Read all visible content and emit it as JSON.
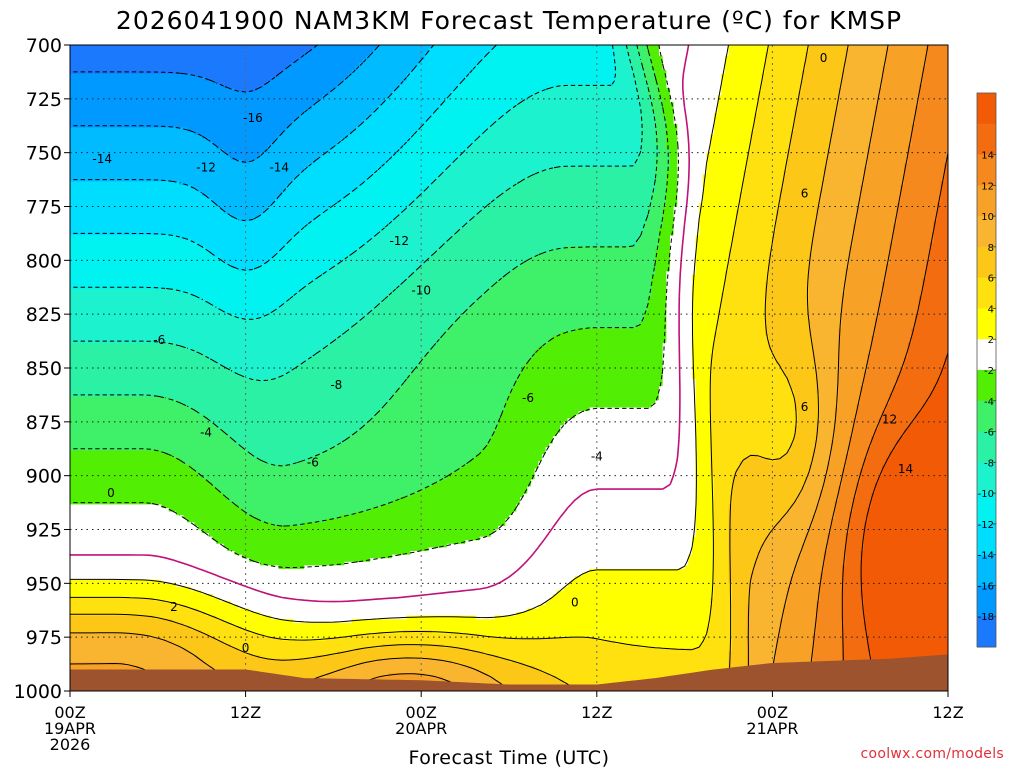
{
  "chart_data": {
    "type": "heatmap",
    "title": "2026041900 NAM3KM Forecast Temperature (ºC) for KMSP",
    "xlabel": "Forecast Time (UTC)",
    "ylabel": "",
    "y_levels": [
      700,
      725,
      750,
      775,
      800,
      825,
      850,
      875,
      900,
      925,
      950,
      975,
      1000
    ],
    "x_hours": [
      0,
      12,
      24,
      36,
      48,
      60
    ],
    "x_ticks": [
      {
        "hour": 0,
        "lines": [
          "00Z",
          "19APR",
          "2026"
        ]
      },
      {
        "hour": 12,
        "lines": [
          "12Z"
        ]
      },
      {
        "hour": 24,
        "lines": [
          "00Z",
          "20APR"
        ]
      },
      {
        "hour": 36,
        "lines": [
          "12Z"
        ]
      },
      {
        "hour": 48,
        "lines": [
          "00Z",
          "21APR"
        ]
      },
      {
        "hour": 60,
        "lines": [
          "12Z"
        ]
      }
    ],
    "xlim": [
      0,
      60
    ],
    "ylim": [
      700,
      1000
    ],
    "grid": true,
    "colorbar": {
      "labels": [
        14,
        12,
        10,
        8,
        6,
        4,
        2,
        -2,
        -4,
        -6,
        -8,
        -10,
        -12,
        -14,
        -16,
        -18
      ],
      "bins": [
        {
          "lo": 16,
          "hi": 18,
          "color": "#f35a06"
        },
        {
          "lo": 14,
          "hi": 16,
          "color": "#f36d10"
        },
        {
          "lo": 12,
          "hi": 14,
          "color": "#f5891e"
        },
        {
          "lo": 10,
          "hi": 12,
          "color": "#f7a227"
        },
        {
          "lo": 8,
          "hi": 10,
          "color": "#f9b430"
        },
        {
          "lo": 6,
          "hi": 8,
          "color": "#fcc717"
        },
        {
          "lo": 4,
          "hi": 6,
          "color": "#fee10f"
        },
        {
          "lo": 2,
          "hi": 4,
          "color": "#ffff00"
        },
        {
          "lo": -2,
          "hi": 2,
          "color": "#ffffff"
        },
        {
          "lo": -4,
          "hi": -2,
          "color": "#52ee03"
        },
        {
          "lo": -6,
          "hi": -4,
          "color": "#3ef168"
        },
        {
          "lo": -8,
          "hi": -6,
          "color": "#2bf1a4"
        },
        {
          "lo": -10,
          "hi": -8,
          "color": "#1cf2cd"
        },
        {
          "lo": -12,
          "hi": -10,
          "color": "#00f2f1"
        },
        {
          "lo": -14,
          "hi": -12,
          "color": "#00deff"
        },
        {
          "lo": -16,
          "hi": -14,
          "color": "#00bbff"
        },
        {
          "lo": -18,
          "hi": -16,
          "color": "#0099ff"
        },
        {
          "lo": -20,
          "hi": -18,
          "color": "#1b79fd"
        }
      ]
    },
    "zero_line_color": "#c0117a",
    "terrain_color": "#9c532e",
    "contour_labels": [
      {
        "text": "0",
        "hour": 51.5,
        "p": 706
      },
      {
        "text": "-16",
        "hour": 12.5,
        "p": 734
      },
      {
        "text": "-14",
        "hour": 2.2,
        "p": 753
      },
      {
        "text": "-12",
        "hour": 9.3,
        "p": 757
      },
      {
        "text": "-14",
        "hour": 14.3,
        "p": 757
      },
      {
        "text": "6",
        "hour": 50.2,
        "p": 769
      },
      {
        "text": "-12",
        "hour": 22.5,
        "p": 791
      },
      {
        "text": "-10",
        "hour": 24.0,
        "p": 814
      },
      {
        "text": "-6",
        "hour": 6.1,
        "p": 837
      },
      {
        "text": "-8",
        "hour": 18.2,
        "p": 858
      },
      {
        "text": "6",
        "hour": 50.2,
        "p": 868
      },
      {
        "text": "12",
        "hour": 56.0,
        "p": 874
      },
      {
        "text": "-6",
        "hour": 31.3,
        "p": 864
      },
      {
        "text": "-4",
        "hour": 9.3,
        "p": 880
      },
      {
        "text": "-6",
        "hour": 16.6,
        "p": 894
      },
      {
        "text": "-4",
        "hour": 36.0,
        "p": 891
      },
      {
        "text": "14",
        "hour": 57.1,
        "p": 897
      },
      {
        "text": "0",
        "hour": 2.8,
        "p": 908
      },
      {
        "text": "0",
        "hour": 34.5,
        "p": 959
      },
      {
        "text": "2",
        "hour": 7.1,
        "p": 961
      },
      {
        "text": "0",
        "hour": 12.0,
        "p": 980
      }
    ],
    "attribution": "coolwx.com/models"
  }
}
